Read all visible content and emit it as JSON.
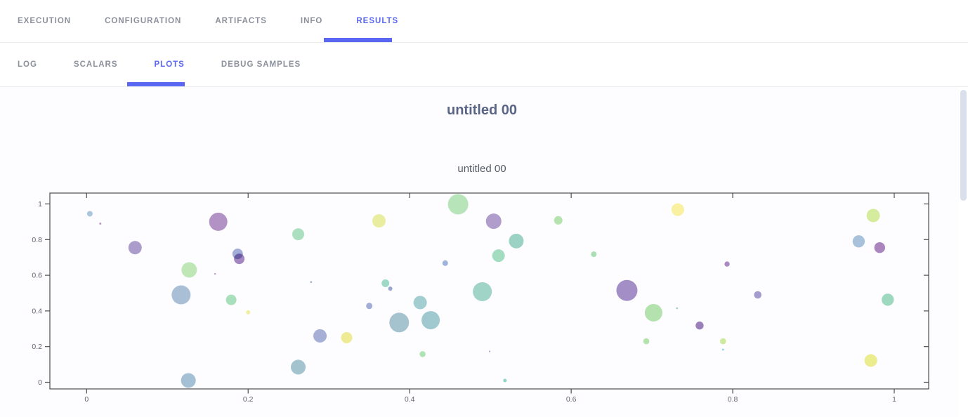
{
  "accent_color": "#5a67f3",
  "tabs": {
    "items": [
      {
        "label": "EXECUTION",
        "active": false
      },
      {
        "label": "CONFIGURATION",
        "active": false
      },
      {
        "label": "ARTIFACTS",
        "active": false
      },
      {
        "label": "INFO",
        "active": false
      },
      {
        "label": "RESULTS",
        "active": true
      }
    ]
  },
  "subtabs": {
    "items": [
      {
        "label": "LOG",
        "active": false
      },
      {
        "label": "SCALARS",
        "active": false
      },
      {
        "label": "PLOTS",
        "active": true
      },
      {
        "label": "DEBUG SAMPLES",
        "active": false
      }
    ]
  },
  "page": {
    "section_title": "untitled 00"
  },
  "chart_data": {
    "type": "scatter",
    "title": "untitled 00",
    "xlabel": "",
    "ylabel": "",
    "xlim": [
      -0.045,
      1.043
    ],
    "ylim": [
      -0.037,
      1.06
    ],
    "x_ticks": [
      0,
      0.2,
      0.4,
      0.6,
      0.8,
      1
    ],
    "y_ticks": [
      0,
      0.2,
      0.4,
      0.6,
      0.8,
      1
    ],
    "grid": false,
    "legend": "none",
    "points": [
      {
        "x": 0.004,
        "y": 0.945,
        "r": 4,
        "color": "#a9c6dd"
      },
      {
        "x": 0.017,
        "y": 0.89,
        "r": 1.5,
        "color": "#b79ac6"
      },
      {
        "x": 0.06,
        "y": 0.755,
        "r": 9.5,
        "color": "#ab9ccb"
      },
      {
        "x": 0.163,
        "y": 0.9,
        "r": 13,
        "color": "#b292c4"
      },
      {
        "x": 0.187,
        "y": 0.72,
        "r": 7.5,
        "color": "#a3aed8"
      },
      {
        "x": 0.189,
        "y": 0.692,
        "r": 7.5,
        "color": "#a387c0"
      },
      {
        "x": 0.127,
        "y": 0.63,
        "r": 11,
        "color": "#bfe6b5"
      },
      {
        "x": 0.159,
        "y": 0.608,
        "r": 1.2,
        "color": "#b79ac6"
      },
      {
        "x": 0.117,
        "y": 0.49,
        "r": 13.5,
        "color": "#a8bfd6"
      },
      {
        "x": 0.179,
        "y": 0.462,
        "r": 7.5,
        "color": "#aadfbb"
      },
      {
        "x": 0.2,
        "y": 0.392,
        "r": 3,
        "color": "#eef0a0"
      },
      {
        "x": 0.126,
        "y": 0.01,
        "r": 10.5,
        "color": "#a3c0d4"
      },
      {
        "x": 0.262,
        "y": 0.83,
        "r": 8.5,
        "color": "#abdfc0"
      },
      {
        "x": 0.362,
        "y": 0.905,
        "r": 9.5,
        "color": "#e9eda0"
      },
      {
        "x": 0.46,
        "y": 0.998,
        "r": 14.5,
        "color": "#b7e5b9"
      },
      {
        "x": 0.504,
        "y": 0.903,
        "r": 11,
        "color": "#b19dcb"
      },
      {
        "x": 0.444,
        "y": 0.668,
        "r": 4,
        "color": "#9fb3da"
      },
      {
        "x": 0.278,
        "y": 0.562,
        "r": 1.3,
        "color": "#9aa6c8"
      },
      {
        "x": 0.37,
        "y": 0.555,
        "r": 5.5,
        "color": "#9ed9c6"
      },
      {
        "x": 0.376,
        "y": 0.525,
        "r": 3,
        "color": "#98a8cc"
      },
      {
        "x": 0.413,
        "y": 0.447,
        "r": 9.5,
        "color": "#a2cdd1"
      },
      {
        "x": 0.35,
        "y": 0.428,
        "r": 4.5,
        "color": "#a3aed8"
      },
      {
        "x": 0.387,
        "y": 0.335,
        "r": 14,
        "color": "#a4c3cf"
      },
      {
        "x": 0.426,
        "y": 0.348,
        "r": 13,
        "color": "#a0c8cf"
      },
      {
        "x": 0.289,
        "y": 0.26,
        "r": 9.5,
        "color": "#a6afd6"
      },
      {
        "x": 0.322,
        "y": 0.25,
        "r": 8,
        "color": "#eeeb94"
      },
      {
        "x": 0.416,
        "y": 0.158,
        "r": 4.3,
        "color": "#b0e3b4"
      },
      {
        "x": 0.262,
        "y": 0.085,
        "r": 10.5,
        "color": "#a3c3ce"
      },
      {
        "x": 0.499,
        "y": 0.173,
        "r": 1.2,
        "color": "#b8a7cc"
      },
      {
        "x": 0.49,
        "y": 0.508,
        "r": 13.5,
        "color": "#9fd4c6"
      },
      {
        "x": 0.584,
        "y": 0.908,
        "r": 6,
        "color": "#b5e3ae"
      },
      {
        "x": 0.532,
        "y": 0.792,
        "r": 10.5,
        "color": "#9cd2c3"
      },
      {
        "x": 0.51,
        "y": 0.71,
        "r": 9,
        "color": "#a2dcc1"
      },
      {
        "x": 0.628,
        "y": 0.718,
        "r": 4,
        "color": "#aadfb6"
      },
      {
        "x": 0.669,
        "y": 0.515,
        "r": 15,
        "color": "#a38fc5"
      },
      {
        "x": 0.702,
        "y": 0.39,
        "r": 12.5,
        "color": "#b4e2ae"
      },
      {
        "x": 0.731,
        "y": 0.415,
        "r": 1.3,
        "color": "#9fd0b5"
      },
      {
        "x": 0.759,
        "y": 0.318,
        "r": 5.7,
        "color": "#9a7fba"
      },
      {
        "x": 0.693,
        "y": 0.23,
        "r": 4.3,
        "color": "#b4e3ad"
      },
      {
        "x": 0.518,
        "y": 0.01,
        "r": 2.5,
        "color": "#8fd4c4"
      },
      {
        "x": 0.732,
        "y": 0.968,
        "r": 9,
        "color": "#f9f0a2"
      },
      {
        "x": 0.974,
        "y": 0.935,
        "r": 9.5,
        "color": "#d5ec9f"
      },
      {
        "x": 0.956,
        "y": 0.79,
        "r": 8.7,
        "color": "#a9c2dc"
      },
      {
        "x": 0.982,
        "y": 0.755,
        "r": 7.7,
        "color": "#ab85bd"
      },
      {
        "x": 0.793,
        "y": 0.663,
        "r": 3.7,
        "color": "#a98bc2"
      },
      {
        "x": 0.831,
        "y": 0.49,
        "r": 5.3,
        "color": "#a49ccd"
      },
      {
        "x": 0.992,
        "y": 0.463,
        "r": 8.7,
        "color": "#9fd8c0"
      },
      {
        "x": 0.788,
        "y": 0.23,
        "r": 4.3,
        "color": "#cdea9e"
      },
      {
        "x": 0.788,
        "y": 0.183,
        "r": 1.4,
        "color": "#8fd0e3"
      },
      {
        "x": 0.971,
        "y": 0.122,
        "r": 9,
        "color": "#ebec8d"
      }
    ]
  }
}
